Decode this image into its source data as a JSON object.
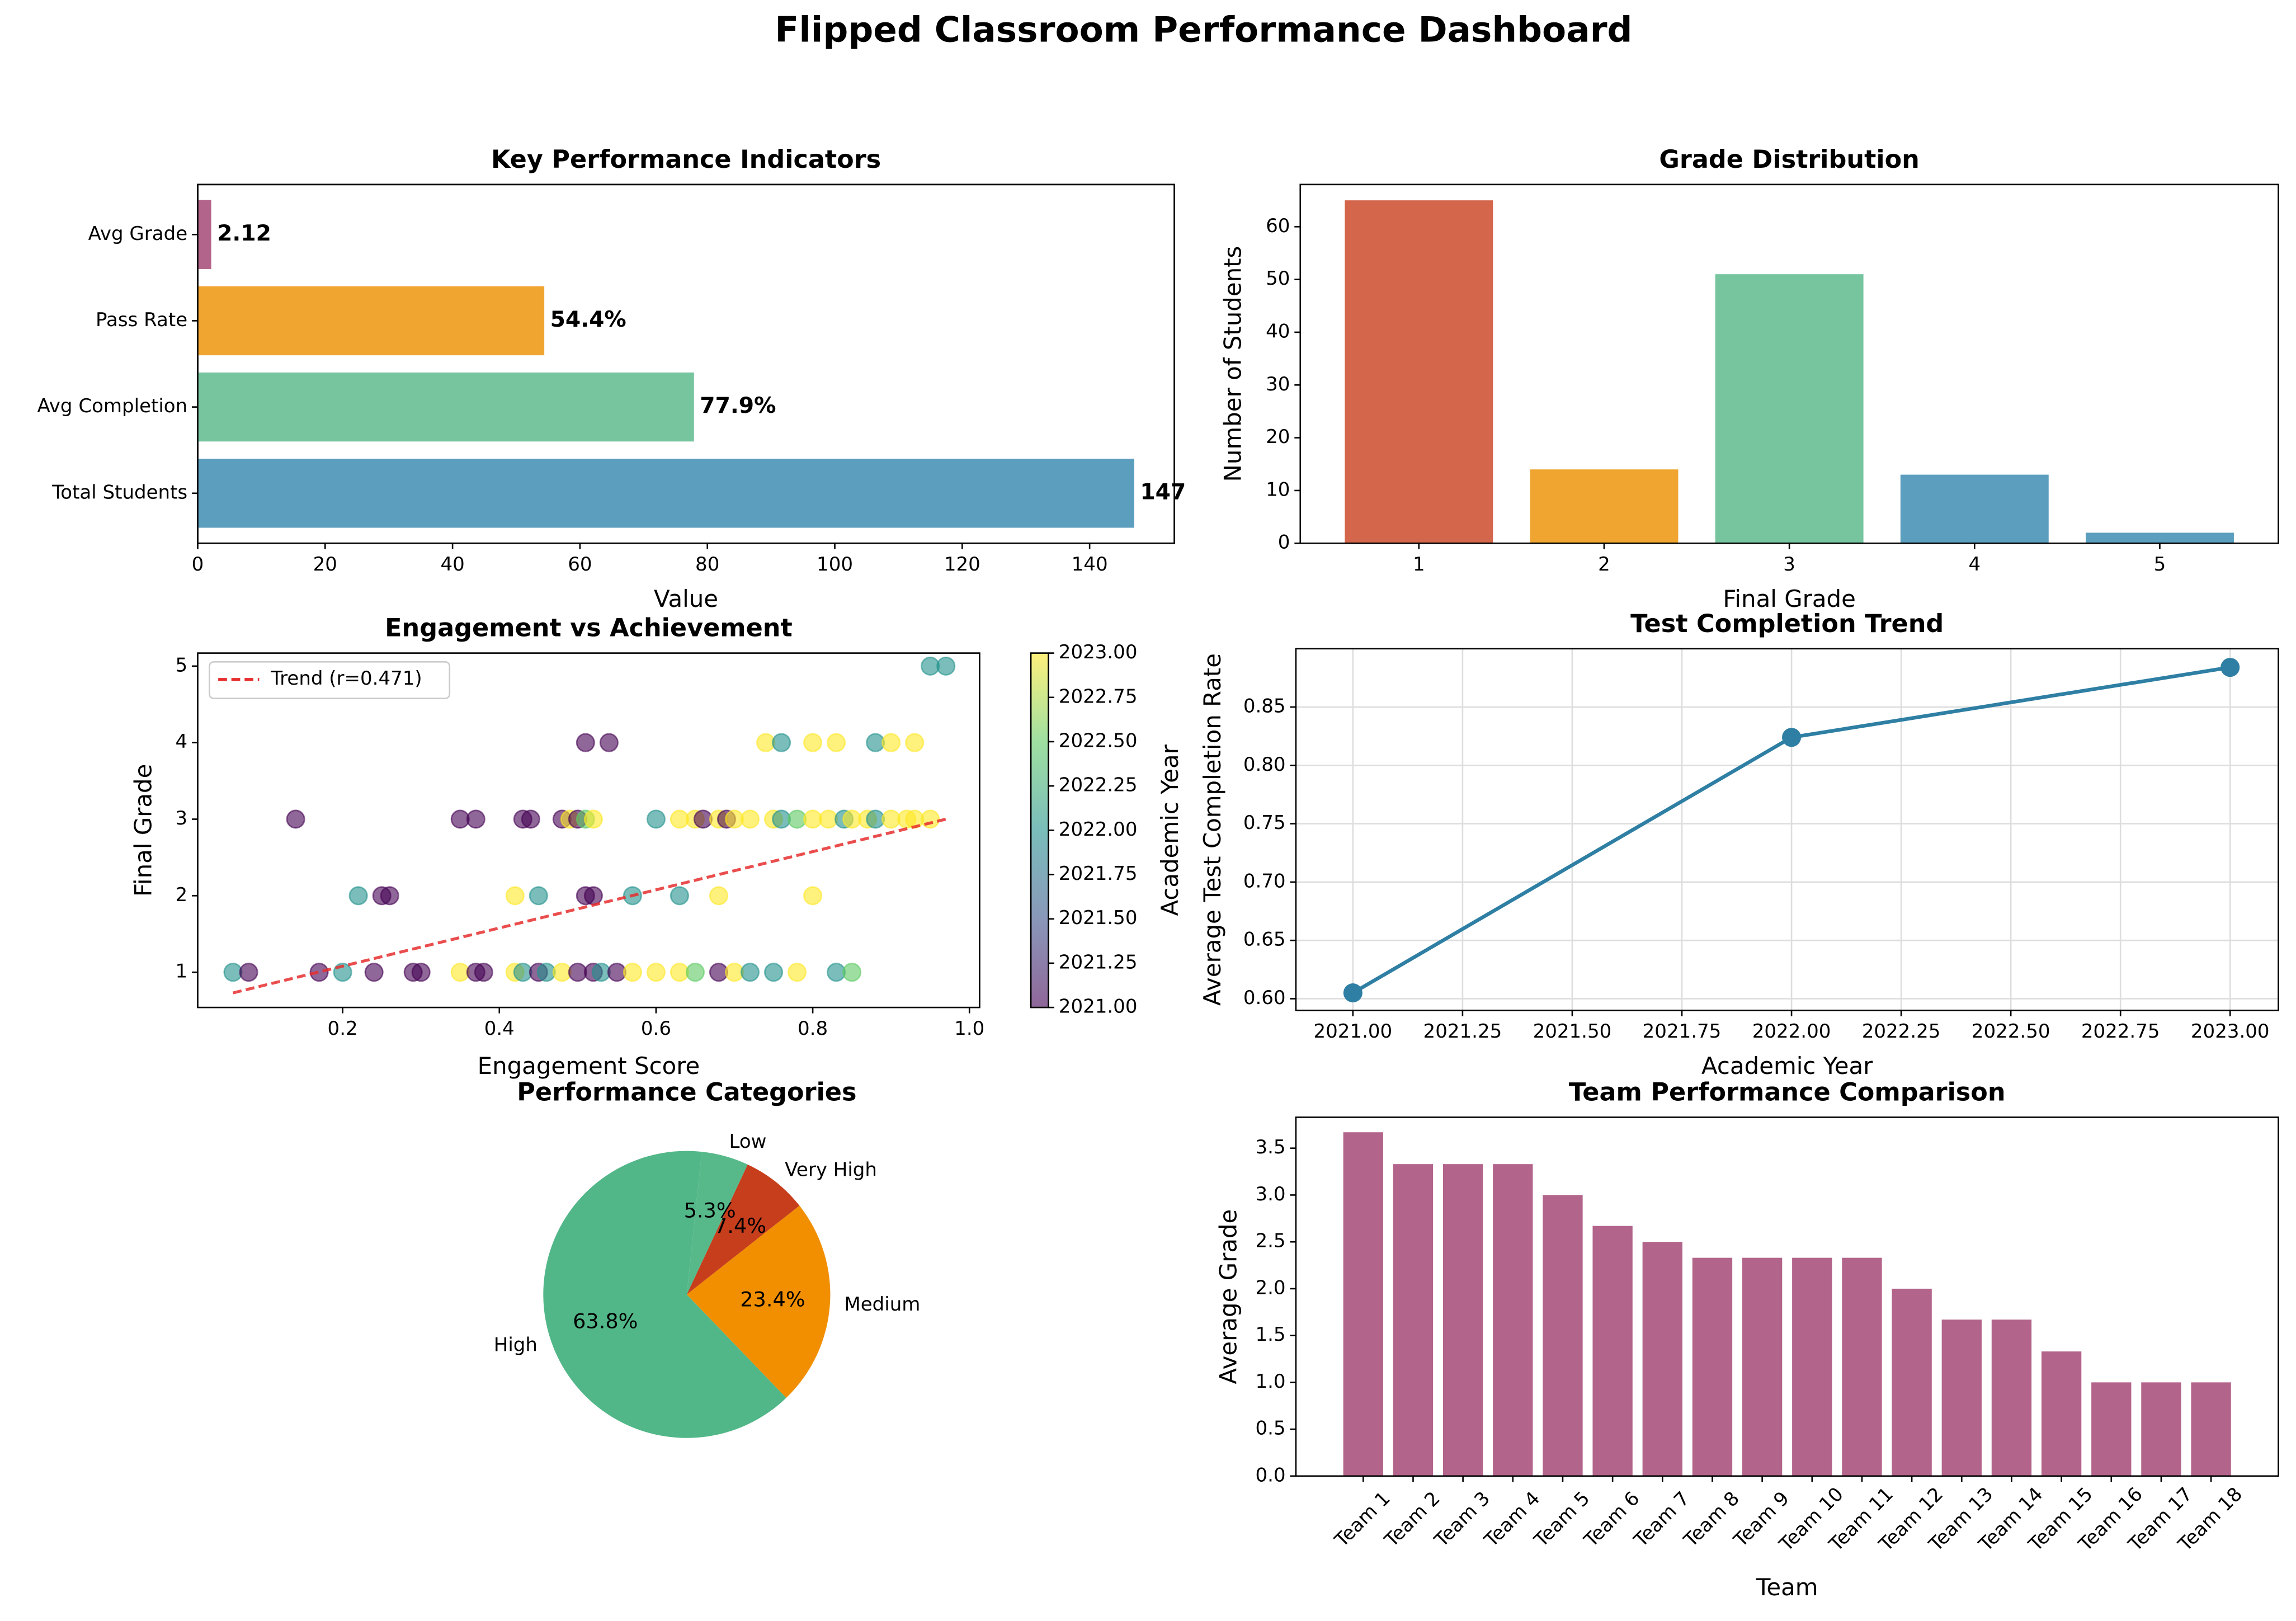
{
  "chart_data": [
    {
      "type": "barh",
      "title": "Key Performance Indicators",
      "xlabel": "Value",
      "categories": [
        "Total Students",
        "Avg Completion",
        "Pass Rate",
        "Avg Grade"
      ],
      "values": [
        147,
        77.9,
        54.4,
        2.12
      ],
      "value_labels": [
        "147",
        "77.9%",
        "54.4%",
        "2.12"
      ],
      "colors": [
        "#5b9ebd",
        "#76c59f",
        "#f0a531",
        "#b3648b"
      ],
      "xlim": [
        0,
        153.3
      ],
      "xticks": [
        0,
        20,
        40,
        60,
        80,
        100,
        120,
        140
      ]
    },
    {
      "type": "bar",
      "title": "Grade Distribution",
      "xlabel": "Final Grade",
      "ylabel": "Number of Students",
      "categories": [
        "1",
        "2",
        "3",
        "4",
        "5"
      ],
      "values": [
        65,
        14,
        51,
        13,
        2
      ],
      "colors": [
        "#d4664b",
        "#f0a531",
        "#76c59f",
        "#5b9ebd",
        "#5b9ebd"
      ],
      "ylim": [
        0,
        68
      ],
      "yticks": [
        0,
        10,
        20,
        30,
        40,
        50,
        60
      ]
    },
    {
      "type": "scatter",
      "title": "Engagement vs Achievement",
      "xlabel": "Engagement Score",
      "ylabel": "Final Grade",
      "x": [
        0.95,
        0.97,
        0.51,
        0.54,
        0.74,
        0.76,
        0.8,
        0.83,
        0.88,
        0.9,
        0.93,
        0.14,
        0.35,
        0.37,
        0.43,
        0.44,
        0.48,
        0.49,
        0.5,
        0.51,
        0.52,
        0.6,
        0.63,
        0.65,
        0.66,
        0.68,
        0.69,
        0.7,
        0.72,
        0.75,
        0.76,
        0.78,
        0.8,
        0.82,
        0.84,
        0.85,
        0.87,
        0.88,
        0.9,
        0.92,
        0.93,
        0.95,
        0.22,
        0.25,
        0.26,
        0.42,
        0.45,
        0.51,
        0.52,
        0.57,
        0.63,
        0.68,
        0.8,
        0.06,
        0.08,
        0.17,
        0.2,
        0.24,
        0.29,
        0.3,
        0.35,
        0.37,
        0.38,
        0.42,
        0.43,
        0.45,
        0.46,
        0.48,
        0.5,
        0.52,
        0.53,
        0.55,
        0.57,
        0.6,
        0.63,
        0.65,
        0.68,
        0.7,
        0.72,
        0.75,
        0.78,
        0.83,
        0.85
      ],
      "y": [
        5,
        5,
        4,
        4,
        4,
        4,
        4,
        4,
        4,
        4,
        4,
        3,
        3,
        3,
        3,
        3,
        3,
        3,
        3,
        3,
        3,
        3,
        3,
        3,
        3,
        3,
        3,
        3,
        3,
        3,
        3,
        3,
        3,
        3,
        3,
        3,
        3,
        3,
        3,
        3,
        3,
        3,
        2,
        2,
        2,
        2,
        2,
        2,
        2,
        2,
        2,
        2,
        2,
        1,
        1,
        1,
        1,
        1,
        1,
        1,
        1,
        1,
        1,
        1,
        1,
        1,
        1,
        1,
        1,
        1,
        1,
        1,
        1,
        1,
        1,
        1,
        1,
        1,
        1,
        1,
        1,
        1,
        1
      ],
      "color_values": [
        2022,
        2022,
        2021,
        2021,
        2023,
        2022,
        2023,
        2023,
        2022,
        2023,
        2023,
        2021,
        2021,
        2021,
        2021,
        2021,
        2021,
        2023,
        2021,
        2022.5,
        2023,
        2022,
        2023,
        2023,
        2021,
        2023,
        2021,
        2023,
        2023,
        2023,
        2022,
        2022.5,
        2023,
        2023,
        2022,
        2023,
        2023,
        2022,
        2023,
        2023,
        2023,
        2023,
        2022,
        2021,
        2021,
        2023,
        2022,
        2021,
        2021,
        2022,
        2022,
        2023,
        2023,
        2022,
        2021,
        2021,
        2022,
        2021,
        2021,
        2021,
        2023,
        2021,
        2021,
        2023,
        2022,
        2021,
        2022,
        2023,
        2021,
        2021,
        2022,
        2021,
        2023,
        2023,
        2023,
        2022.5,
        2021,
        2023,
        2022,
        2022,
        2023,
        2022,
        2022.5
      ],
      "colormap": "viridis",
      "colorbar_label": "Academic Year",
      "clim": [
        2021,
        2023
      ],
      "cticks": [
        {
          "value": 2021,
          "label": "2021.00"
        },
        {
          "value": 2021.25,
          "label": "2021.25"
        },
        {
          "value": 2021.5,
          "label": "2021.50"
        },
        {
          "value": 2021.75,
          "label": "2021.75"
        },
        {
          "value": 2022,
          "label": "2022.00"
        },
        {
          "value": 2022.25,
          "label": "2022.25"
        },
        {
          "value": 2022.5,
          "label": "2022.50"
        },
        {
          "value": 2022.75,
          "label": "2022.75"
        },
        {
          "value": 2023,
          "label": "2023.00"
        }
      ],
      "trend": {
        "name": "Trend (r=0.471)",
        "color": "#e62e2e",
        "x": [
          0.06,
          0.97
        ],
        "y": [
          0.73,
          3.0
        ]
      },
      "xlim": [
        0.015,
        1.013
      ],
      "xticks": [
        0.2,
        0.4,
        0.6,
        0.8,
        {
          "value": 1,
          "label": "1.0"
        }
      ],
      "ylim": [
        0.54,
        5.17
      ],
      "yticks": [
        1,
        2,
        3,
        4,
        5
      ]
    },
    {
      "type": "line",
      "title": "Test Completion Trend",
      "xlabel": "Academic Year",
      "ylabel": "Average Test Completion Rate",
      "x": [
        2021,
        2022,
        2023
      ],
      "y": [
        0.605,
        0.824,
        0.884
      ],
      "color": "#2e7fa3",
      "grid": true,
      "xlim": [
        2020.87,
        2023.11
      ],
      "xticks": [
        {
          "value": 2021,
          "label": "2021.00"
        },
        {
          "value": 2021.25,
          "label": "2021.25"
        },
        {
          "value": 2021.5,
          "label": "2021.50"
        },
        {
          "value": 2021.75,
          "label": "2021.75"
        },
        {
          "value": 2022,
          "label": "2022.00"
        },
        {
          "value": 2022.25,
          "label": "2022.25"
        },
        {
          "value": 2022.5,
          "label": "2022.50"
        },
        {
          "value": 2022.75,
          "label": "2022.75"
        },
        {
          "value": 2023,
          "label": "2023.00"
        }
      ],
      "ylim": [
        0.59,
        0.9
      ],
      "yticks": [
        {
          "value": 0.6,
          "label": "0.60"
        },
        {
          "value": 0.65,
          "label": "0.65"
        },
        {
          "value": 0.7,
          "label": "0.70"
        },
        {
          "value": 0.75,
          "label": "0.75"
        },
        {
          "value": 0.8,
          "label": "0.80"
        },
        {
          "value": 0.85,
          "label": "0.85"
        }
      ]
    },
    {
      "type": "pie",
      "title": "Performance Categories",
      "categories": [
        "High",
        "Medium",
        "Very High",
        "Low"
      ],
      "values": [
        63.8,
        23.4,
        7.4,
        5.3
      ],
      "value_labels": [
        "63.8%",
        "23.4%",
        "7.4%",
        "5.3%"
      ],
      "colors": [
        "#52b788",
        "#f18f01",
        "#c73e1d",
        "#57b98a"
      ]
    },
    {
      "type": "bar",
      "title": "Team Performance Comparison",
      "xlabel": "Team",
      "ylabel": "Average Grade",
      "categories": [
        "Team 1",
        "Team 2",
        "Team 3",
        "Team 4",
        "Team 5",
        "Team 6",
        "Team 7",
        "Team 8",
        "Team 9",
        "Team 10",
        "Team 11",
        "Team 12",
        "Team 13",
        "Team 14",
        "Team 15",
        "Team 16",
        "Team 17",
        "Team 18"
      ],
      "values": [
        3.67,
        3.33,
        3.33,
        3.33,
        3.0,
        2.67,
        2.5,
        2.33,
        2.33,
        2.33,
        2.33,
        2.0,
        1.67,
        1.67,
        1.33,
        1.0,
        1.0,
        1.0
      ],
      "color": "#b3648b",
      "ylim": [
        0,
        3.83
      ],
      "yticks": [
        {
          "value": 0,
          "label": "0.0"
        },
        {
          "value": 0.5,
          "label": "0.5"
        },
        {
          "value": 1,
          "label": "1.0"
        },
        {
          "value": 1.5,
          "label": "1.5"
        },
        {
          "value": 2,
          "label": "2.0"
        },
        {
          "value": 2.5,
          "label": "2.5"
        },
        {
          "value": 3,
          "label": "3.0"
        },
        {
          "value": 3.5,
          "label": "3.5"
        }
      ]
    }
  ],
  "title": "Flipped Classroom Performance Dashboard"
}
